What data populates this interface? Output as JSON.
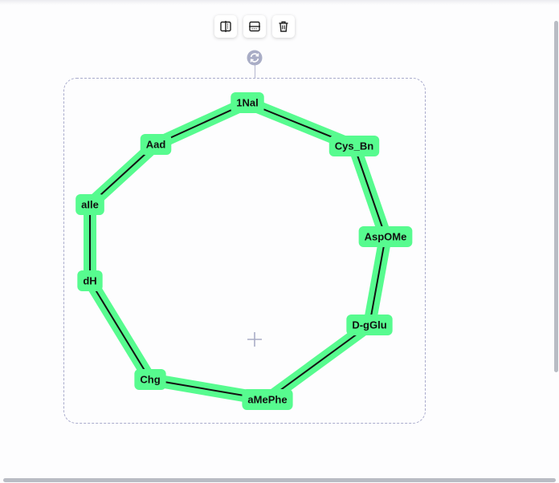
{
  "toolbar": {
    "buttons": [
      {
        "name": "flip-horizontal-button",
        "icon": "flip-horizontal-icon"
      },
      {
        "name": "flip-vertical-button",
        "icon": "flip-vertical-icon"
      },
      {
        "name": "delete-button",
        "icon": "trash-icon"
      }
    ]
  },
  "rotate_handle": {
    "icon": "rotate-icon"
  },
  "center_marker": {
    "icon": "plus-icon"
  },
  "diagram": {
    "type": "cyclic-peptide-ring",
    "node_color": "#57fb8f",
    "edge_color": "#111111",
    "nodes": [
      {
        "label": "1Nal"
      },
      {
        "label": "Cys_Bn"
      },
      {
        "label": "AspOMe"
      },
      {
        "label": "D-gGlu"
      },
      {
        "label": "aMePhe"
      },
      {
        "label": "Chg"
      },
      {
        "label": "dH"
      },
      {
        "label": "aIle"
      },
      {
        "label": "Aad"
      }
    ],
    "edges": [
      [
        0,
        1
      ],
      [
        1,
        2
      ],
      [
        2,
        3
      ],
      [
        3,
        4
      ],
      [
        4,
        5
      ],
      [
        5,
        6
      ],
      [
        6,
        7
      ],
      [
        7,
        8
      ],
      [
        8,
        0
      ]
    ]
  }
}
